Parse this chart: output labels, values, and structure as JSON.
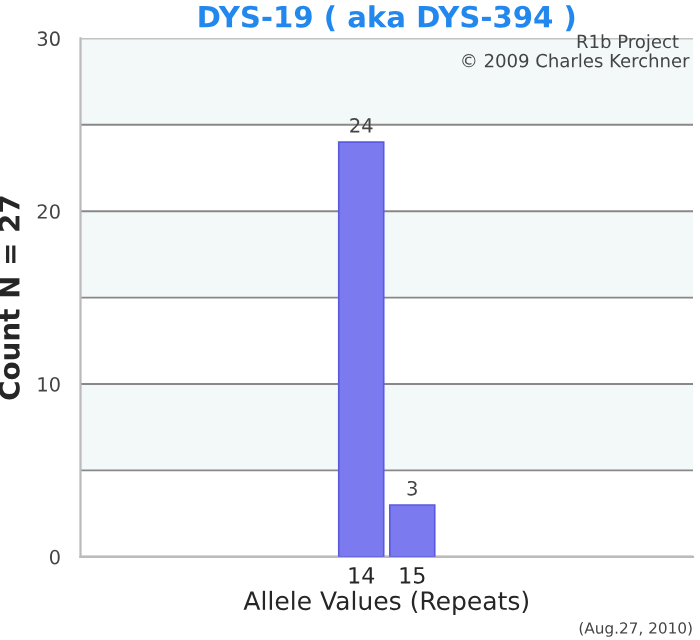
{
  "chart_data": {
    "type": "bar",
    "title": "DYS-19 ( aka DYS-394 )",
    "xlabel": "Allele Values (Repeats)",
    "ylabel": "Count N = 27",
    "categories": [
      null,
      null,
      null,
      null,
      null,
      "14",
      "15",
      null,
      null,
      null,
      null,
      null
    ],
    "values": [
      null,
      null,
      null,
      null,
      null,
      24,
      3,
      null,
      null,
      null,
      null,
      null
    ],
    "color": "#7b7bef",
    "data_labels": true,
    "ylim": [
      0,
      30
    ],
    "yticks": [
      0,
      {
        "value": 5,
        "label": null
      },
      10,
      {
        "value": 15,
        "label": null
      },
      20,
      {
        "value": 25,
        "label": null
      },
      30
    ],
    "grid": "y",
    "bands": [
      {
        "axis": "y",
        "from": 5,
        "to": 10,
        "color": "#f3f8f8"
      },
      {
        "axis": "y",
        "from": 15,
        "to": 20,
        "color": "#f3f8f8"
      },
      {
        "axis": "y",
        "from": 25,
        "to": 30,
        "color": "#f3f8f8"
      }
    ],
    "annotations": [
      "R1b Project",
      "© 2009 Charles Kerchner",
      "(Aug.27, 2010)"
    ]
  }
}
